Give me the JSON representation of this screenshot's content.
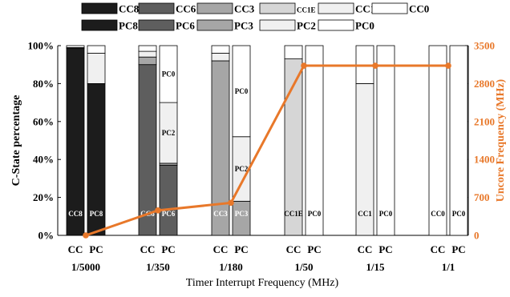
{
  "chart_data": {
    "type": "bar",
    "subtype": "stacked-percent-with-line",
    "groups": [
      "1/5000",
      "1/350",
      "1/180",
      "1/50",
      "1/15",
      "1/1"
    ],
    "sub_labels": [
      "CC",
      "PC"
    ],
    "xlabel": "Timer Interrupt Frequency (MHz)",
    "ylabel": "C-State percentage",
    "y2label": "Uncore Frequency (MHz)",
    "ylim": [
      0,
      100
    ],
    "y2lim": [
      0,
      3500
    ],
    "yticks": [
      "0%",
      "20%",
      "40%",
      "60%",
      "80%",
      "100%"
    ],
    "y2ticks": [
      "0",
      "700",
      "1400",
      "2100",
      "2800",
      "3500"
    ],
    "legend_cc": [
      {
        "name": "CC8",
        "color": "#1c1c1c",
        "small": false
      },
      {
        "name": "CC6",
        "color": "#5e5e5e",
        "small": false
      },
      {
        "name": "CC3",
        "color": "#a6a6a6",
        "small": false
      },
      {
        "name": "CC1E",
        "color": "#d6d6d6",
        "small": true
      },
      {
        "name": "CC1",
        "color": "#f0f0f0",
        "small": false
      },
      {
        "name": "CC0",
        "color": "#ffffff",
        "small": false
      }
    ],
    "legend_pc": [
      {
        "name": "PC8",
        "color": "#1c1c1c"
      },
      {
        "name": "PC6",
        "color": "#5e5e5e"
      },
      {
        "name": "PC3",
        "color": "#a6a6a6"
      },
      {
        "name": "PC2",
        "color": "#f0f0f0"
      },
      {
        "name": "PC0",
        "color": "#ffffff"
      }
    ],
    "cc_bars": [
      [
        {
          "state": "CC8",
          "value": 98.5,
          "label": "CC8"
        },
        {
          "state": "CC6",
          "value": 0.5,
          "label": ""
        },
        {
          "state": "CC0",
          "value": 1.0,
          "label": ""
        }
      ],
      [
        {
          "state": "CC6",
          "value": 90,
          "label": "CC6"
        },
        {
          "state": "CC3",
          "value": 4,
          "label": ""
        },
        {
          "state": "CC1",
          "value": 3,
          "label": ""
        },
        {
          "state": "CC0",
          "value": 3,
          "label": ""
        }
      ],
      [
        {
          "state": "CC3",
          "value": 92,
          "label": "CC3"
        },
        {
          "state": "CC1",
          "value": 4,
          "label": ""
        },
        {
          "state": "CC0",
          "value": 4,
          "label": ""
        }
      ],
      [
        {
          "state": "CC1E",
          "value": 93,
          "label": "CC1E"
        },
        {
          "state": "CC0",
          "value": 7,
          "label": ""
        }
      ],
      [
        {
          "state": "CC1",
          "value": 80,
          "label": "CC1"
        },
        {
          "state": "CC0",
          "value": 20,
          "label": ""
        }
      ],
      [
        {
          "state": "CC0",
          "value": 100,
          "label": "CC0"
        }
      ]
    ],
    "pc_bars": [
      [
        {
          "state": "PC8",
          "value": 80,
          "label": "PC8"
        },
        {
          "state": "PC2",
          "value": 16,
          "label": ""
        },
        {
          "state": "PC0",
          "value": 4,
          "label": ""
        }
      ],
      [
        {
          "state": "PC6",
          "value": 37,
          "label": "PC6"
        },
        {
          "state": "PC3",
          "value": 1,
          "label": ""
        },
        {
          "state": "PC2",
          "value": 32,
          "label": "PC2"
        },
        {
          "state": "PC0",
          "value": 30,
          "label": "PC0"
        }
      ],
      [
        {
          "state": "PC3",
          "value": 18,
          "label": "PC3"
        },
        {
          "state": "PC2",
          "value": 34,
          "label": "PC2"
        },
        {
          "state": "PC0",
          "value": 48,
          "label": "PC0"
        }
      ],
      [
        {
          "state": "PC0",
          "value": 100,
          "label": "PC0"
        }
      ],
      [
        {
          "state": "PC0",
          "value": 100,
          "label": "PC0"
        }
      ],
      [
        {
          "state": "PC0",
          "value": 100,
          "label": "PC0"
        }
      ]
    ],
    "line_series": {
      "values": [
        0,
        460,
        600,
        3130,
        3130,
        3130
      ],
      "color": "#e8782a"
    },
    "colors": {
      "CC8": "#1c1c1c",
      "CC6": "#5e5e5e",
      "CC3": "#a6a6a6",
      "CC1E": "#d6d6d6",
      "CC1": "#f0f0f0",
      "CC0": "#ffffff",
      "PC8": "#1c1c1c",
      "PC6": "#5e5e5e",
      "PC3": "#a6a6a6",
      "PC2": "#f0f0f0",
      "PC0": "#ffffff"
    }
  }
}
